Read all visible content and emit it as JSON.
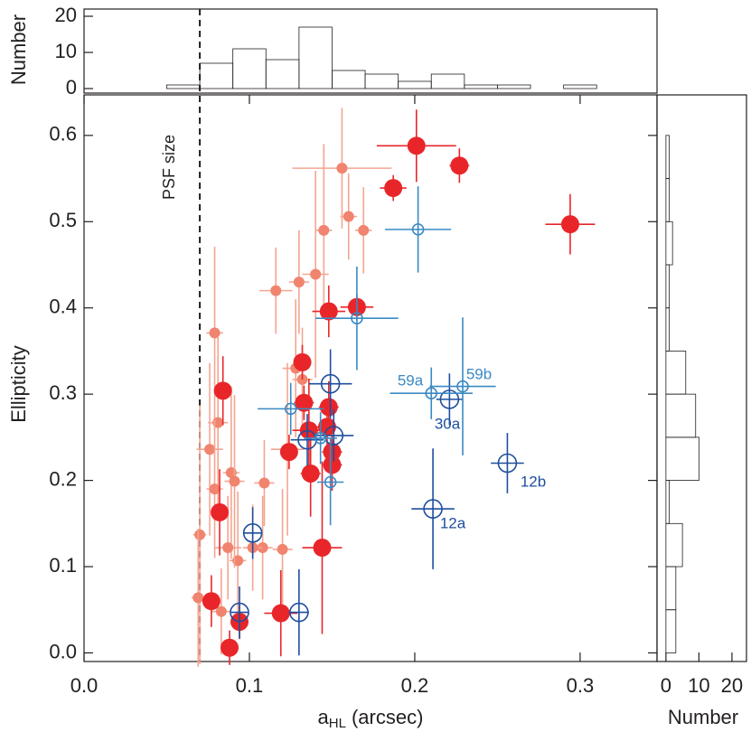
{
  "chart_data": [
    {
      "type": "scatter",
      "x_label": [
        "a",
        "HL",
        "(arcsec)"
      ],
      "y_label": "Ellipticity",
      "xlim": [
        0,
        0.3465
      ],
      "ylim": [
        -0.01,
        0.647
      ],
      "xticks": [
        {
          "value": 0,
          "label": "0.0"
        },
        0.1,
        0.2,
        0.3
      ],
      "yticks": [
        {
          "value": 0,
          "label": "0.0"
        },
        0.1,
        0.2,
        0.3,
        0.4,
        0.5,
        0.6
      ],
      "psf_line": 0.07,
      "psf_label": "PSF size",
      "series": [
        {
          "color": "#f0846e",
          "marker": "filled",
          "size": "small",
          "x": [
            0.156,
            0.16,
            0.145,
            0.169,
            0.13,
            0.116,
            0.14,
            0.079,
            0.128,
            0.132,
            0.081,
            0.076,
            0.089,
            0.079,
            0.109,
            0.12,
            0.108,
            0.087,
            0.102,
            0.07,
            0.069,
            0.083,
            0.093,
            0.123,
            0.091
          ],
          "y": [
            0.562,
            0.506,
            0.49,
            0.49,
            0.43,
            0.42,
            0.439,
            0.371,
            0.33,
            0.317,
            0.267,
            0.236,
            0.209,
            0.19,
            0.197,
            0.12,
            0.122,
            0.122,
            0.122,
            0.137,
            0.064,
            0.048,
            0.107,
            0.236,
            0.199
          ],
          "xerr": [
            0.03,
            0.005,
            0.005,
            0.005,
            0.006,
            0.01,
            0.008,
            0.005,
            0.008,
            0.006,
            0.006,
            0.008,
            0.005,
            0.005,
            0.006,
            0.006,
            0.006,
            0.008,
            0.006,
            0.004,
            0.004,
            0.006,
            0.005,
            0.01,
            0.006
          ],
          "yerr": [
            0.07,
            0.05,
            0.1,
            0.05,
            0.06,
            0.05,
            0.12,
            0.1,
            0.08,
            0.06,
            0.1,
            0.1,
            0.1,
            0.08,
            0.05,
            0.07,
            0.06,
            0.06,
            0.05,
            0.15,
            0.08,
            0.05,
            0.08,
            0.1,
            0.1
          ]
        },
        {
          "color": "#e8262a",
          "marker": "filled",
          "size": "large",
          "x": [
            0.201,
            0.227,
            0.187,
            0.294,
            0.165,
            0.148,
            0.132,
            0.084,
            0.133,
            0.148,
            0.136,
            0.147,
            0.124,
            0.15,
            0.15,
            0.137,
            0.082,
            0.144,
            0.077,
            0.094,
            0.088,
            0.119
          ],
          "y": [
            0.588,
            0.565,
            0.539,
            0.497,
            0.401,
            0.396,
            0.337,
            0.304,
            0.29,
            0.285,
            0.258,
            0.262,
            0.233,
            0.233,
            0.218,
            0.208,
            0.163,
            0.122,
            0.06,
            0.036,
            0.006,
            0.046
          ],
          "xerr": [
            0.024,
            0.006,
            0.008,
            0.015,
            0.01,
            0.01,
            0.005,
            0.005,
            0.006,
            0.006,
            0.01,
            0.006,
            0.005,
            0.006,
            0.006,
            0.006,
            0.005,
            0.012,
            0.005,
            0.005,
            0.004,
            0.01
          ],
          "yerr": [
            0.042,
            0.02,
            0.015,
            0.035,
            0.015,
            0.03,
            0.02,
            0.04,
            0.02,
            0.03,
            0.06,
            0.03,
            0.02,
            0.02,
            0.03,
            0.05,
            0.05,
            0.1,
            0.03,
            0.02,
            0.02,
            0.05
          ]
        },
        {
          "color": "#1e4e9e",
          "marker": "open",
          "size": "large",
          "x": [
            0.149,
            0.151,
            0.135,
            0.102,
            0.094,
            0.13,
            0.221,
            0.256,
            0.211
          ],
          "y": [
            0.312,
            0.252,
            0.247,
            0.139,
            0.047,
            0.047,
            0.294,
            0.22,
            0.167
          ],
          "xerr": [
            0.013,
            0.012,
            0.01,
            0.005,
            0.005,
            0.006,
            0.008,
            0.01,
            0.013
          ],
          "yerr": [
            0.04,
            0.03,
            0.03,
            0.03,
            0.03,
            0.05,
            0.03,
            0.035,
            0.07
          ]
        },
        {
          "color": "#3a8ac4",
          "marker": "open",
          "size": "small",
          "x": [
            0.202,
            0.165,
            0.21,
            0.229,
            0.125,
            0.143,
            0.149
          ],
          "y": [
            0.491,
            0.388,
            0.301,
            0.309,
            0.283,
            0.249,
            0.198
          ],
          "xerr": [
            0.02,
            0.025,
            0.025,
            0.02,
            0.02,
            0.01,
            0.008
          ],
          "yerr": [
            0.05,
            0.06,
            0.03,
            0.08,
            0.03,
            0.03,
            0.05
          ]
        }
      ],
      "annotations": [
        {
          "text": "30a",
          "color": "#1e4e9e"
        },
        {
          "text": "12b",
          "color": "#1e4e9e"
        },
        {
          "text": "12a",
          "color": "#1e4e9e"
        },
        {
          "text": "59a",
          "color": "#3a8ac4"
        },
        {
          "text": "59b",
          "color": "#3a8ac4"
        }
      ]
    },
    {
      "type": "histogram",
      "orientation": "vertical",
      "y_label": "Number",
      "bins": [
        0.05,
        0.07,
        0.09,
        0.11,
        0.13,
        0.15,
        0.17,
        0.19,
        0.21,
        0.23,
        0.25,
        0.27,
        0.29,
        0.31
      ],
      "counts": [
        1,
        7,
        11,
        8,
        17,
        5,
        4,
        2,
        4,
        1,
        1,
        0,
        1
      ],
      "xlim": [
        0,
        0.3465
      ],
      "ylim": [
        -1.25,
        22
      ],
      "yticks": [
        0,
        10,
        20
      ]
    },
    {
      "type": "histogram",
      "orientation": "horizontal",
      "x_label": "Number",
      "bins": [
        0,
        0.05,
        0.1,
        0.15,
        0.2,
        0.25,
        0.3,
        0.35,
        0.4,
        0.45,
        0.5,
        0.55,
        0.6
      ],
      "counts": [
        3,
        3,
        5,
        1,
        10,
        9,
        6,
        1,
        1,
        2,
        1,
        1
      ],
      "xlim": [
        -2.7,
        24.4
      ],
      "ylim": [
        -0.01,
        0.647
      ],
      "xticks": [
        0,
        10,
        20
      ]
    }
  ]
}
